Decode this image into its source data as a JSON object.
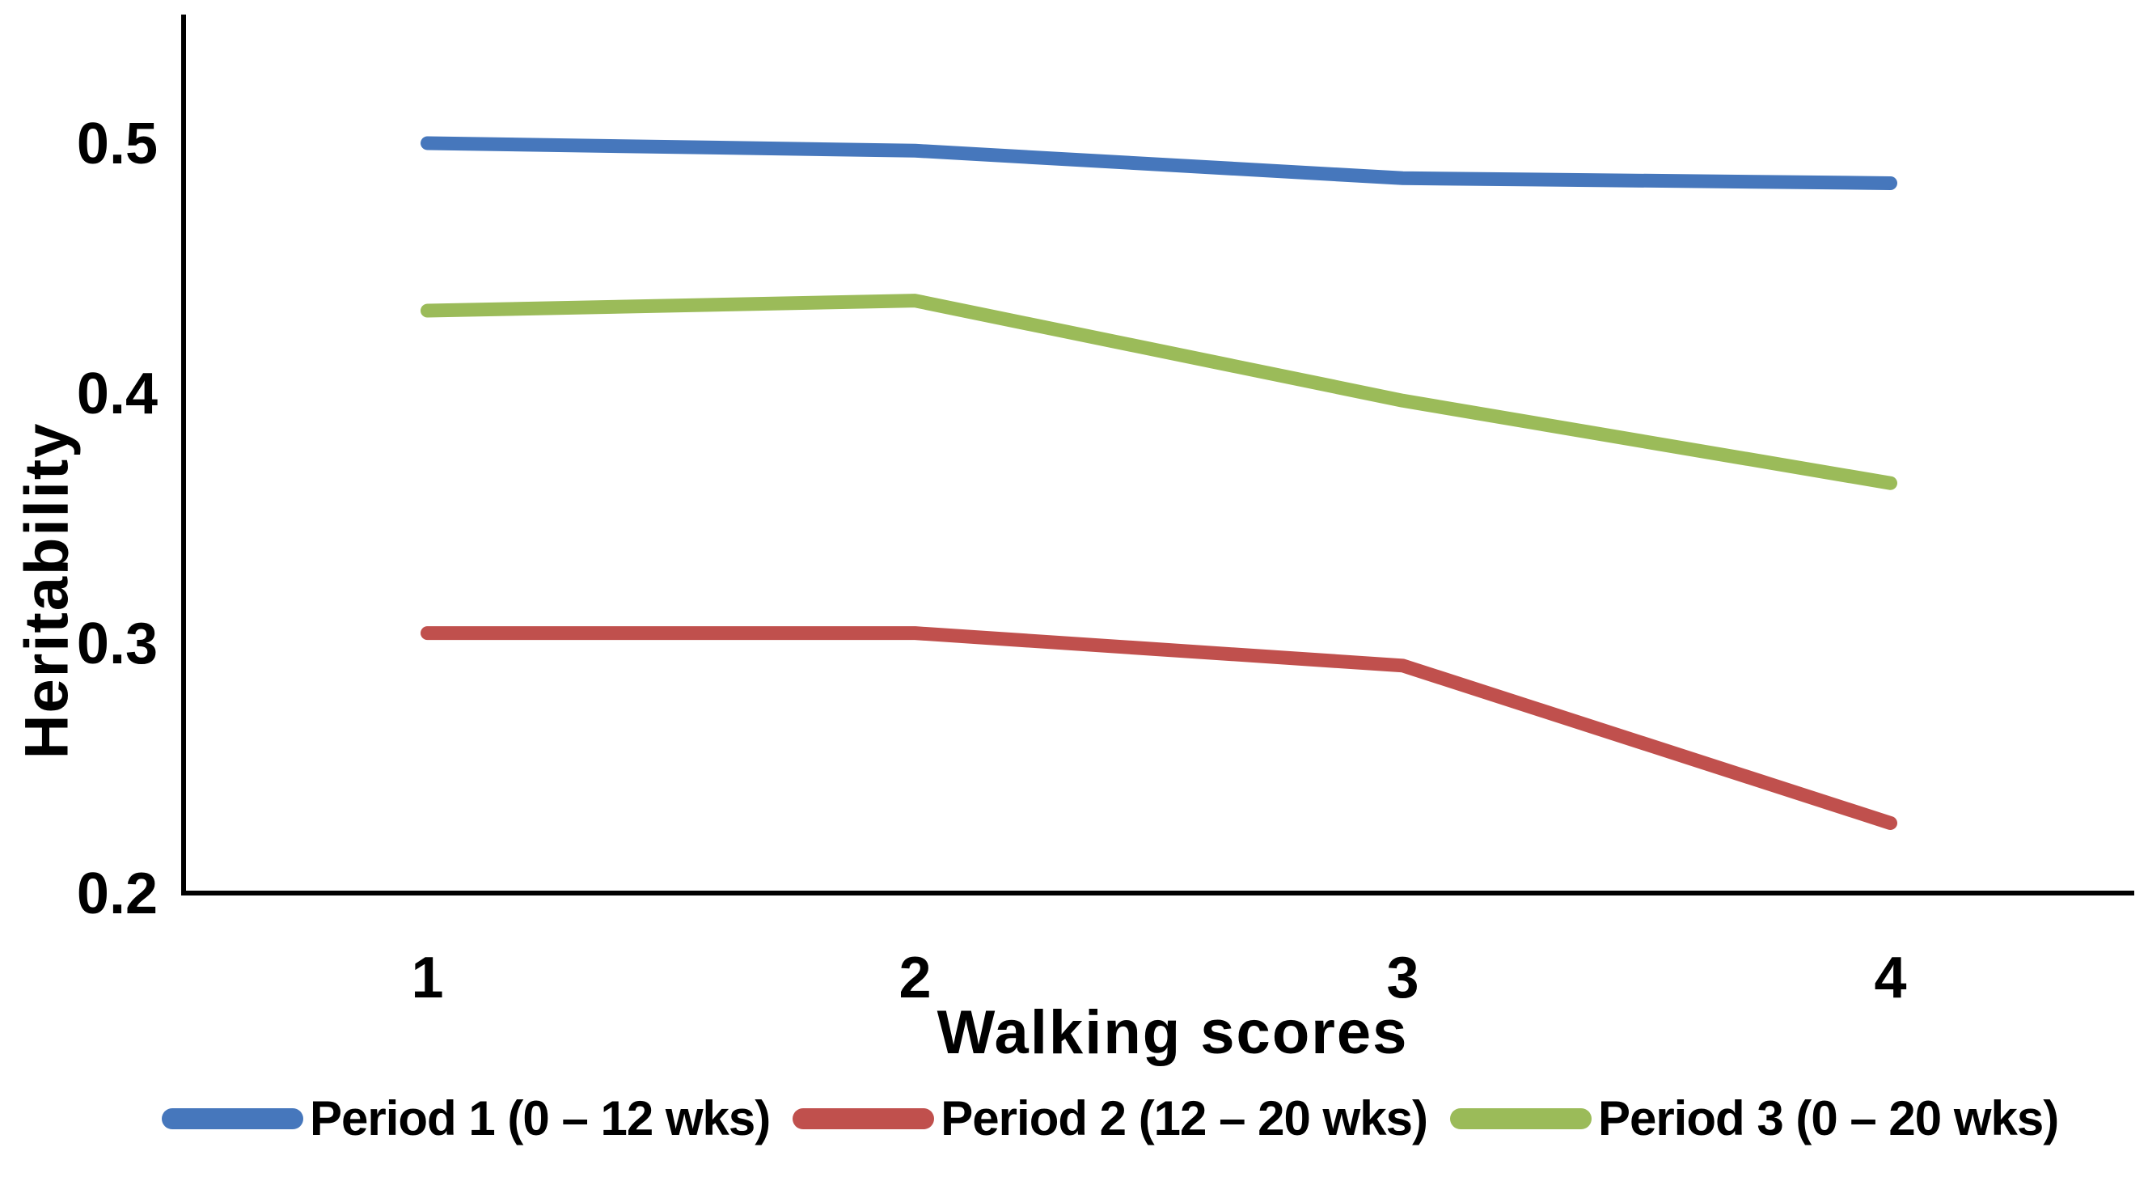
{
  "figure": {
    "background": "#ffffff",
    "text_color": "#000000",
    "axis_color": "#000000"
  },
  "chart_data": {
    "type": "line",
    "title": "",
    "xlabel": "Walking scores",
    "ylabel": "Heritability",
    "categories": [
      "1",
      "2",
      "3",
      "4"
    ],
    "x_tick_labels": [
      "1",
      "2",
      "3",
      "4"
    ],
    "y_ticks": [
      0.5,
      0.4,
      0.3,
      0.2
    ],
    "y_tick_labels": [
      "0.5",
      "0.4",
      "0.3",
      "0.2"
    ],
    "ylim": [
      0.2,
      0.55
    ],
    "grid": false,
    "legend_position": "bottom",
    "series": [
      {
        "name": "Period 1 (0 – 12 wks)",
        "color": "#4677BC",
        "values": [
          0.5,
          0.497,
          0.486,
          0.484
        ]
      },
      {
        "name": "Period 2 (12 – 20 wks)",
        "color": "#C0504D",
        "values": [
          0.304,
          0.304,
          0.291,
          0.228
        ]
      },
      {
        "name": "Period 3 (0 – 20 wks)",
        "color": "#9BBB59",
        "values": [
          0.433,
          0.437,
          0.397,
          0.364
        ]
      }
    ]
  }
}
